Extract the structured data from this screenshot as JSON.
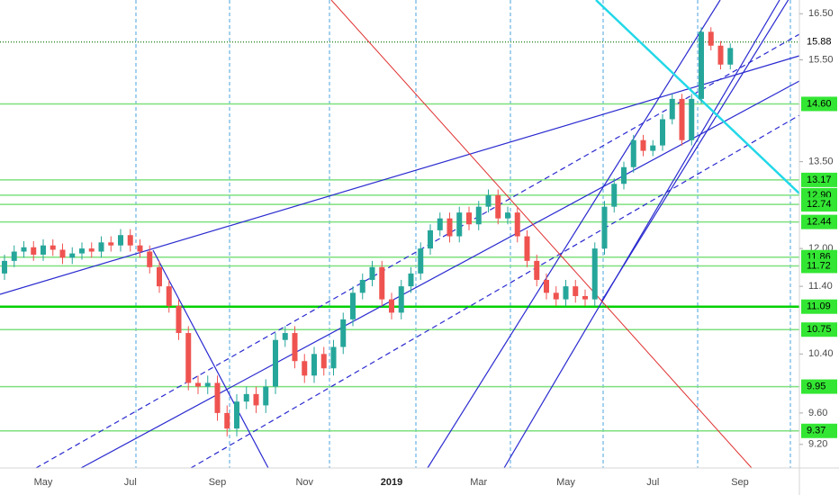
{
  "chart_data": {
    "type": "candlestick",
    "categories": [
      null,
      null,
      null,
      null,
      "May",
      null,
      null,
      null,
      null,
      null,
      null,
      null,
      null,
      "Jul",
      null,
      null,
      null,
      null,
      null,
      null,
      null,
      null,
      "Sep",
      null,
      null,
      null,
      null,
      null,
      null,
      null,
      null,
      "Nov",
      null,
      null,
      null,
      null,
      null,
      null,
      null,
      null,
      "2019",
      null,
      null,
      null,
      null,
      null,
      null,
      null,
      null,
      "Mar",
      null,
      null,
      null,
      null,
      null,
      null,
      null,
      null,
      "May",
      null,
      null,
      null,
      null,
      null,
      null,
      null,
      null,
      "Jul",
      null,
      null,
      null,
      null,
      null,
      null,
      null,
      null,
      "Sep",
      null,
      null,
      null
    ],
    "open": [
      11.6,
      11.8,
      11.95,
      12.02,
      11.9,
      12.05,
      11.98,
      11.85,
      11.92,
      12.0,
      11.95,
      12.1,
      12.05,
      12.22,
      12.05,
      11.95,
      11.7,
      11.4,
      11.1,
      10.7,
      10.0,
      9.95,
      10.0,
      9.6,
      9.4,
      9.75,
      9.85,
      9.7,
      9.95,
      10.6,
      10.7,
      10.3,
      10.1,
      10.4,
      10.2,
      10.5,
      10.9,
      11.3,
      11.5,
      11.7,
      11.2,
      11.0,
      11.4,
      11.6,
      12.0,
      12.3,
      12.5,
      12.2,
      12.6,
      12.4,
      12.7,
      12.9,
      12.5,
      12.6,
      12.2,
      11.8,
      11.5,
      11.3,
      11.2,
      11.4,
      11.25,
      11.2,
      12.0,
      12.7,
      13.1,
      13.4,
      13.9,
      13.7,
      13.8,
      14.3,
      14.7,
      13.9,
      14.7,
      16.1,
      15.8,
      15.4,
      null,
      null,
      null,
      null
    ],
    "high": [
      11.9,
      12.05,
      12.12,
      12.12,
      12.15,
      12.15,
      12.08,
      12.02,
      12.1,
      12.1,
      12.2,
      12.2,
      12.32,
      12.32,
      12.15,
      12.05,
      11.8,
      11.5,
      11.2,
      10.8,
      10.1,
      10.1,
      10.1,
      9.7,
      9.85,
      9.95,
      9.95,
      10.05,
      10.7,
      10.8,
      10.8,
      10.4,
      10.5,
      10.5,
      10.6,
      11.0,
      11.4,
      11.6,
      11.8,
      11.8,
      11.3,
      11.5,
      11.7,
      12.1,
      12.4,
      12.6,
      12.6,
      12.7,
      12.7,
      12.8,
      13.0,
      13.0,
      12.7,
      12.7,
      12.3,
      11.9,
      11.6,
      11.4,
      11.5,
      11.5,
      11.35,
      12.1,
      12.8,
      13.2,
      13.5,
      14.0,
      14.0,
      13.9,
      14.4,
      14.8,
      14.8,
      14.8,
      16.2,
      16.2,
      15.9,
      15.85,
      null,
      null,
      null,
      null
    ],
    "low": [
      11.5,
      11.7,
      11.85,
      11.8,
      11.8,
      11.88,
      11.75,
      11.75,
      11.82,
      11.85,
      11.85,
      11.95,
      11.95,
      11.95,
      11.85,
      11.6,
      11.3,
      11.0,
      10.6,
      9.9,
      9.85,
      9.85,
      9.5,
      9.3,
      9.3,
      9.65,
      9.6,
      9.6,
      9.85,
      10.5,
      10.2,
      10.0,
      10.0,
      10.1,
      10.1,
      10.4,
      10.8,
      11.2,
      11.4,
      11.1,
      10.9,
      10.9,
      11.3,
      11.5,
      11.9,
      12.2,
      12.1,
      12.1,
      12.3,
      12.3,
      12.6,
      12.4,
      12.4,
      12.1,
      11.7,
      11.4,
      11.2,
      11.1,
      11.1,
      11.15,
      11.1,
      11.1,
      11.9,
      12.6,
      13.0,
      13.3,
      13.6,
      13.6,
      13.7,
      14.2,
      13.8,
      13.8,
      14.6,
      15.7,
      15.3,
      15.3,
      null,
      null,
      null,
      null
    ],
    "close": [
      11.8,
      11.95,
      12.02,
      11.9,
      12.05,
      11.98,
      11.85,
      11.92,
      12.0,
      11.95,
      12.1,
      12.05,
      12.22,
      12.05,
      11.95,
      11.7,
      11.4,
      11.1,
      10.7,
      10.0,
      9.95,
      10.0,
      9.6,
      9.4,
      9.75,
      9.85,
      9.7,
      9.95,
      10.6,
      10.7,
      10.3,
      10.1,
      10.4,
      10.2,
      10.5,
      10.9,
      11.3,
      11.5,
      11.7,
      11.2,
      11.0,
      11.4,
      11.6,
      12.0,
      12.3,
      12.5,
      12.2,
      12.6,
      12.4,
      12.7,
      12.9,
      12.5,
      12.6,
      12.2,
      11.8,
      11.5,
      11.3,
      11.2,
      11.4,
      11.25,
      11.2,
      12.0,
      12.7,
      13.1,
      13.4,
      13.9,
      13.7,
      13.8,
      14.3,
      14.7,
      13.9,
      14.7,
      16.1,
      15.8,
      15.4,
      15.75,
      null,
      null,
      null,
      null
    ],
    "up_color": "#26a69a",
    "down_color": "#ef5350",
    "ylim": [
      8.91,
      16.81
    ],
    "log_y": true,
    "yticks": [
      {
        "value": 9.2,
        "label": "9.20"
      },
      {
        "value": 9.6,
        "label": "9.60"
      },
      {
        "value": 10.4,
        "label": "10.40"
      },
      {
        "value": 11.4,
        "label": "11.40"
      },
      {
        "value": 12,
        "label": "12.00"
      },
      {
        "value": 13.5,
        "label": "13.50"
      },
      {
        "value": 15.5,
        "label": "15.50"
      },
      {
        "value": 16.5,
        "label": "16.50"
      }
    ],
    "levels": [
      15.88,
      {
        "value": 14.6,
        "label": "14.60"
      },
      13.17,
      {
        "value": 12.9,
        "label": "12.90"
      },
      12.74,
      12.44,
      11.86,
      11.72,
      11.09,
      10.75,
      9.95,
      9.37
    ],
    "level_color": "#7ee07e"
  }
}
